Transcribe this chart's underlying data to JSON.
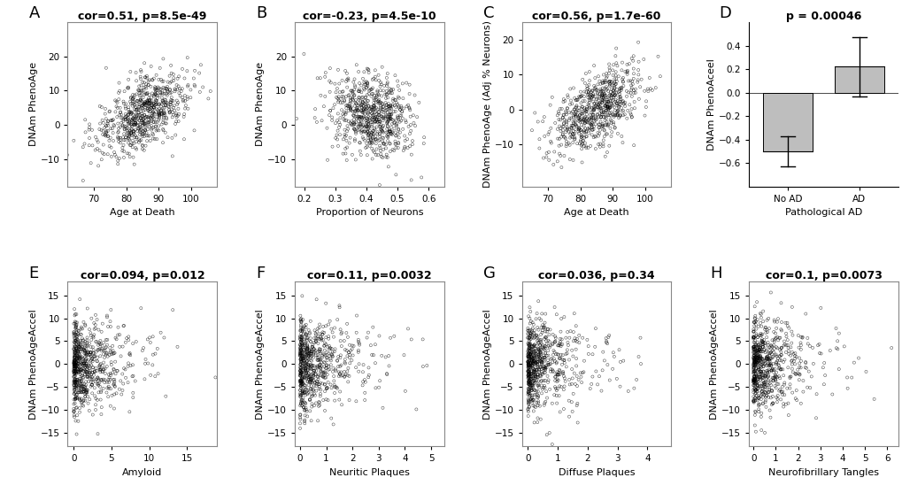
{
  "panels_top": [
    {
      "label": "A",
      "cor_text": "cor=0.51, p=8.5e-49",
      "xlabel": "Age at Death",
      "ylabel": "DNAm PhenoAge",
      "xlim": [
        62,
        108
      ],
      "ylim": [
        -18,
        30
      ],
      "xticks": [
        70,
        80,
        90,
        100
      ],
      "yticks": [
        -10,
        0,
        10,
        20
      ],
      "x_center": 85,
      "x_std": 7,
      "y_center": 3,
      "y_std": 6,
      "cor": 0.51,
      "n_points": 700
    },
    {
      "label": "B",
      "cor_text": "cor=-0.23, p=4.5e-10",
      "xlabel": "Proportion of Neurons",
      "ylabel": "DNAm PhenoAge",
      "xlim": [
        0.17,
        0.65
      ],
      "ylim": [
        -18,
        30
      ],
      "xticks": [
        0.2,
        0.3,
        0.4,
        0.5,
        0.6
      ],
      "yticks": [
        -10,
        0,
        10,
        20
      ],
      "x_center": 0.41,
      "x_std": 0.065,
      "y_center": 3,
      "y_std": 6,
      "cor": -0.23,
      "n_points": 700
    },
    {
      "label": "C",
      "cor_text": "cor=0.56, p=1.7e-60",
      "xlabel": "Age at Death",
      "ylabel": "DNAm PhenoAge (Adj % Neurons)",
      "xlim": [
        62,
        108
      ],
      "ylim": [
        -22,
        25
      ],
      "xticks": [
        70,
        80,
        90,
        100
      ],
      "yticks": [
        -10,
        0,
        10,
        20
      ],
      "x_center": 85,
      "x_std": 7,
      "y_center": 0,
      "y_std": 6,
      "cor": 0.56,
      "n_points": 700
    },
    {
      "label": "D",
      "p_text": "p = 0.00046",
      "xlabel": "Pathological AD",
      "ylabel": "DNAm PhenoAceel",
      "bar_categories": [
        "No AD",
        "AD"
      ],
      "bar_values": [
        -0.5,
        0.22
      ],
      "bar_tops": [
        -0.37,
        0.47
      ],
      "bar_bottoms": [
        -0.63,
        -0.03
      ],
      "bar_color": "#bebebe",
      "ylim": [
        -0.8,
        0.6
      ],
      "yticks": [
        -0.6,
        -0.4,
        -0.2,
        0.0,
        0.2,
        0.4
      ]
    }
  ],
  "panels_bottom": [
    {
      "label": "E",
      "cor_text": "cor=0.094, p=0.012",
      "xlabel": "Amyloid",
      "ylabel": "DNAm PhenoAgeAccel",
      "xlim": [
        -0.8,
        19
      ],
      "ylim": [
        -18,
        18
      ],
      "xticks": [
        0,
        5,
        10,
        15
      ],
      "yticks": [
        -15,
        -10,
        -5,
        0,
        5,
        10,
        15
      ],
      "x_scale": 3.5,
      "y_center": 0,
      "y_std": 5,
      "cor": 0.094,
      "n_points": 700
    },
    {
      "label": "F",
      "cor_text": "cor=0.11, p=0.0032",
      "xlabel": "Neuritic Plaques",
      "ylabel": "DNAm PhenoAgeAccel",
      "xlim": [
        -0.2,
        5.5
      ],
      "ylim": [
        -18,
        18
      ],
      "xticks": [
        0,
        1,
        2,
        3,
        4,
        5
      ],
      "yticks": [
        -15,
        -10,
        -5,
        0,
        5,
        10,
        15
      ],
      "x_scale": 0.9,
      "y_center": 0,
      "y_std": 5,
      "cor": 0.11,
      "n_points": 700
    },
    {
      "label": "G",
      "cor_text": "cor=0.036, p=0.34",
      "xlabel": "Diffuse Plaques",
      "ylabel": "DNAm PhenoAgeAccel",
      "xlim": [
        -0.2,
        4.8
      ],
      "ylim": [
        -18,
        18
      ],
      "xticks": [
        0,
        1,
        2,
        3,
        4
      ],
      "yticks": [
        -15,
        -10,
        -5,
        0,
        5,
        10,
        15
      ],
      "x_scale": 0.9,
      "y_center": 0,
      "y_std": 5,
      "cor": 0.036,
      "n_points": 700
    },
    {
      "label": "H",
      "cor_text": "cor=0.1, p=0.0073",
      "xlabel": "Neurofibrillary Tangles",
      "ylabel": "DNAm PhenoAgeAccel",
      "xlim": [
        -0.2,
        6.5
      ],
      "ylim": [
        -18,
        18
      ],
      "xticks": [
        0,
        1,
        2,
        3,
        4,
        5,
        6
      ],
      "yticks": [
        -15,
        -10,
        -5,
        0,
        5,
        10,
        15
      ],
      "x_scale": 1.1,
      "y_center": 0,
      "y_std": 5,
      "cor": 0.1,
      "n_points": 700
    }
  ],
  "figure_bg": "#ffffff",
  "panel_label_fontsize": 13,
  "cor_text_fontsize": 9,
  "axis_label_fontsize": 8,
  "tick_fontsize": 7.5
}
